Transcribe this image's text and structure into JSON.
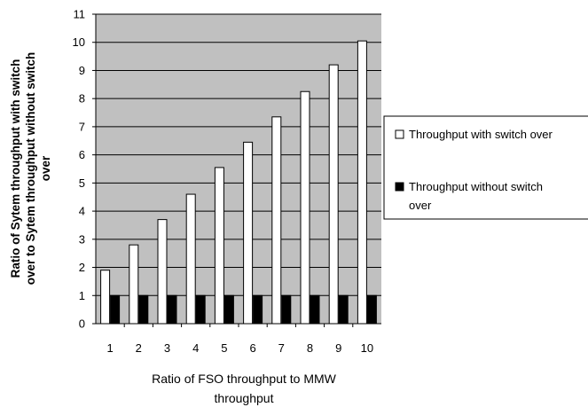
{
  "chart_data": {
    "type": "bar",
    "categories": [
      "1",
      "2",
      "3",
      "4",
      "5",
      "6",
      "7",
      "8",
      "9",
      "10"
    ],
    "series": [
      {
        "name": "Throughput with switch over",
        "values": [
          1.9,
          2.8,
          3.7,
          4.6,
          5.55,
          6.45,
          7.35,
          8.25,
          9.2,
          10.05
        ],
        "color": "#ffffff"
      },
      {
        "name": "Throughput without switch over",
        "values": [
          1,
          1,
          1,
          1,
          1,
          1,
          1,
          1,
          1,
          1
        ],
        "color": "#000000"
      }
    ],
    "xlabel": [
      "Ratio of FSO throughput to MMW",
      "throughput"
    ],
    "ylabel": [
      "Ratio of Sytem throughput with switch",
      "over to Sytem throughput without switch",
      "over"
    ],
    "ylim": [
      0,
      11
    ],
    "yticks": [
      "0",
      "1",
      "2",
      "3",
      "4",
      "5",
      "6",
      "7",
      "8",
      "9",
      "10",
      "11"
    ],
    "legend": {
      "position": "right",
      "items": [
        {
          "lines": [
            "Throughput with switch over"
          ]
        },
        {
          "lines": [
            "Throughput without switch",
            "over"
          ]
        }
      ]
    },
    "plot_background": "#c0c0c0",
    "grid": true
  }
}
